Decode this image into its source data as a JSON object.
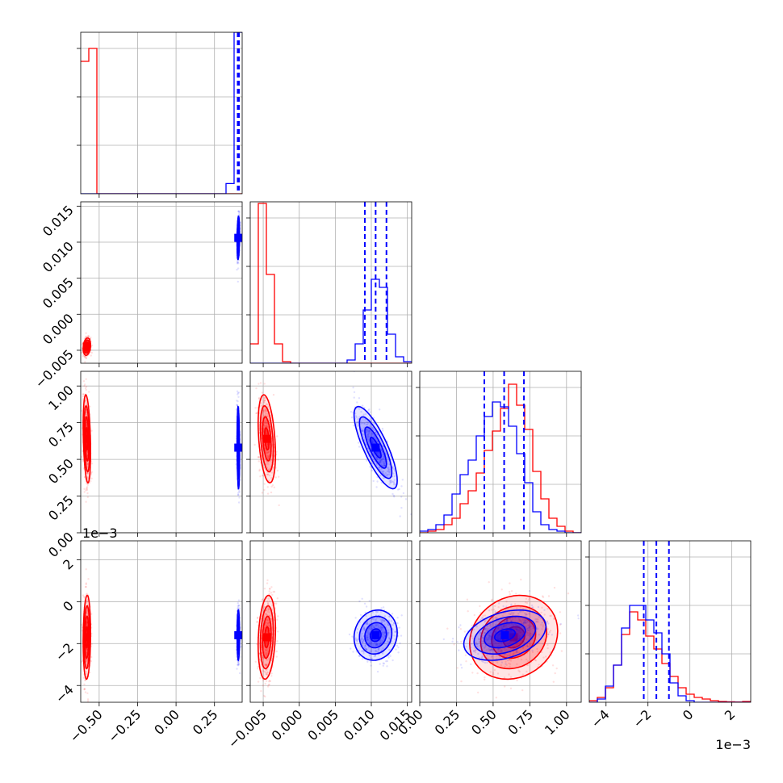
{
  "chart_data": {
    "type": "corner",
    "colors": {
      "series_a": "#0000ff",
      "series_b": "#ff0000",
      "grid": "#b0b0b0",
      "frame": "#000000"
    },
    "series": [
      {
        "color": "#0000ff",
        "params": [
          {
            "mean": 0.405,
            "sd": 0.004,
            "quantiles": [
              0.401,
              0.405,
              0.409
            ]
          },
          {
            "mean": 0.0106,
            "sd": 0.0015,
            "quantiles": [
              0.0091,
              0.0106,
              0.0121
            ]
          },
          {
            "mean": 0.58,
            "sd": 0.14,
            "quantiles": [
              0.44,
              0.575,
              0.71
            ]
          },
          {
            "mean": -0.0016,
            "sd": 0.0006,
            "quantiles": [
              -0.0022,
              -0.0016,
              -0.001
            ]
          }
        ]
      },
      {
        "color": "#ff0000",
        "params": [
          {
            "mean": -0.58,
            "sd": 0.012
          },
          {
            "mean": -0.0045,
            "sd": 0.0006
          },
          {
            "mean": 0.64,
            "sd": 0.15
          },
          {
            "mean": -0.0017,
            "sd": 0.001
          }
        ]
      }
    ],
    "correlations": {
      "blue": {
        "0-1": 0.2,
        "0-2": -0.2,
        "0-3": 0.0,
        "1-2": -0.8,
        "1-3": 0.1,
        "2-3": 0.35
      },
      "red": {
        "0-1": 0.2,
        "0-2": -0.3,
        "0-3": 0.1,
        "1-2": -0.35,
        "1-3": 0.2,
        "2-3": 0.15
      }
    },
    "histograms": [
      {
        "bins": [
          -0.62,
          0.43
        ],
        "blue": [
          0,
          0,
          0,
          0,
          0,
          0,
          0,
          0,
          0,
          0,
          0,
          0,
          0,
          0,
          0,
          0,
          0,
          0,
          0.063,
          1.0
        ],
        "red": [
          0.82,
          0.9,
          0,
          0,
          0,
          0,
          0,
          0,
          0,
          0,
          0,
          0,
          0,
          0,
          0,
          0,
          0,
          0,
          0,
          0
        ]
      },
      {
        "bins": [
          -0.0068,
          0.0156
        ],
        "blue": [
          0,
          0,
          0,
          0,
          0,
          0,
          0,
          0,
          0,
          0,
          0,
          0,
          0.02,
          0.12,
          0.33,
          0.52,
          0.47,
          0.18,
          0.04,
          0.01
        ],
        "red": [
          0.12,
          0.99,
          0.55,
          0.12,
          0.01,
          0,
          0,
          0,
          0,
          0,
          0,
          0,
          0,
          0,
          0,
          0,
          0,
          0,
          0,
          0
        ]
      },
      {
        "bins": [
          0.0,
          1.1
        ],
        "blue": [
          0.01,
          0.02,
          0.05,
          0.11,
          0.24,
          0.36,
          0.45,
          0.6,
          0.72,
          0.81,
          0.78,
          0.66,
          0.49,
          0.31,
          0.13,
          0.05,
          0.02,
          0.01,
          0,
          0
        ],
        "red": [
          0,
          0.01,
          0.02,
          0.05,
          0.09,
          0.18,
          0.26,
          0.37,
          0.51,
          0.63,
          0.77,
          0.92,
          0.79,
          0.64,
          0.38,
          0.21,
          0.09,
          0.04,
          0.01,
          0
        ]
      },
      {
        "bins": [
          -0.0048,
          0.0029
        ],
        "blue": [
          0,
          0.02,
          0.1,
          0.23,
          0.46,
          0.6,
          0.6,
          0.51,
          0.43,
          0.3,
          0.12,
          0.04,
          0.01,
          0,
          0,
          0,
          0,
          0,
          0,
          0
        ],
        "red": [
          0.01,
          0.03,
          0.09,
          0.23,
          0.42,
          0.56,
          0.51,
          0.41,
          0.33,
          0.24,
          0.16,
          0.09,
          0.05,
          0.03,
          0.02,
          0.01,
          0.005,
          0.003,
          0.002,
          0.005
        ]
      }
    ],
    "axes": [
      {
        "range": [
          -0.62,
          0.43
        ],
        "ticks": [
          -0.5,
          -0.25,
          0.0,
          0.25
        ],
        "tick_labels": [
          "−0.50",
          "−0.25",
          "0.00",
          "0.25"
        ]
      },
      {
        "range": [
          -0.0068,
          0.0156
        ],
        "ticks": [
          -0.005,
          0.0,
          0.005,
          0.01,
          0.015
        ],
        "tick_labels": [
          "−0.005",
          "0.000",
          "0.005",
          "0.010",
          "0.015"
        ]
      },
      {
        "range": [
          0.0,
          1.1
        ],
        "ticks": [
          0.0,
          0.25,
          0.5,
          0.75,
          1.0
        ],
        "tick_labels": [
          "0.00",
          "0.25",
          "0.50",
          "0.75",
          "1.00"
        ]
      },
      {
        "range": [
          -0.0048,
          0.0029
        ],
        "ticks": [
          -0.004,
          -0.002,
          0.0,
          0.002
        ],
        "tick_labels": [
          "−4",
          "−2",
          "0",
          "2"
        ],
        "offset_text": "1e−3"
      }
    ],
    "grid": true
  }
}
